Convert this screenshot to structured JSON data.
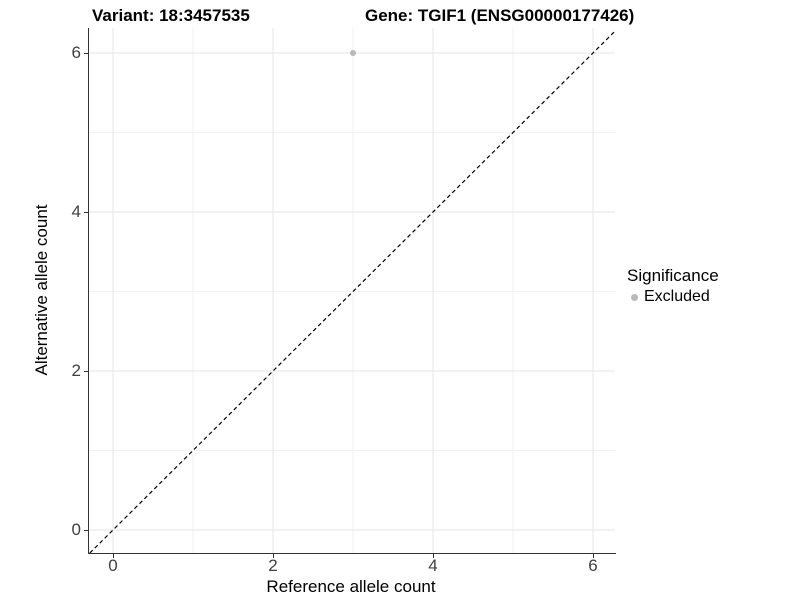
{
  "titles": {
    "variant": "Variant: 18:3457535",
    "gene": "Gene: TGIF1 (ENSG00000177426)"
  },
  "chart_data": {
    "type": "scatter",
    "xlabel": "Reference allele count",
    "ylabel": "Alternative allele count",
    "xlim": [
      -0.3,
      6.28
    ],
    "ylim": [
      -0.3,
      6.3
    ],
    "x_major_ticks": [
      0,
      2,
      4,
      6
    ],
    "y_major_ticks": [
      0,
      2,
      4,
      6
    ],
    "x_tick_labels": [
      "0",
      "2",
      "4",
      "6"
    ],
    "y_tick_labels": [
      "0",
      "2",
      "4",
      "6"
    ],
    "x_minor_gridlines": [
      1,
      3,
      5
    ],
    "y_minor_gridlines": [
      1,
      3,
      5
    ],
    "grid": true,
    "points": [
      {
        "x": 3,
        "y": 6,
        "series": "Excluded"
      }
    ],
    "identity_line": {
      "style": "dashed",
      "from": [
        -0.29,
        -0.29
      ],
      "to": [
        6.28,
        6.28
      ]
    },
    "legend": {
      "title": "Significance",
      "position": "right",
      "entries": [
        {
          "label": "Excluded",
          "marker": "circle",
          "color": "#b9b9b9"
        }
      ]
    }
  },
  "colors": {
    "point": "#b9b9b9",
    "grid_major": "#e6e6e6",
    "grid_minor": "#f2f2f2",
    "axis": "#333333",
    "dashed_line": "#000000",
    "background": "#ffffff"
  }
}
